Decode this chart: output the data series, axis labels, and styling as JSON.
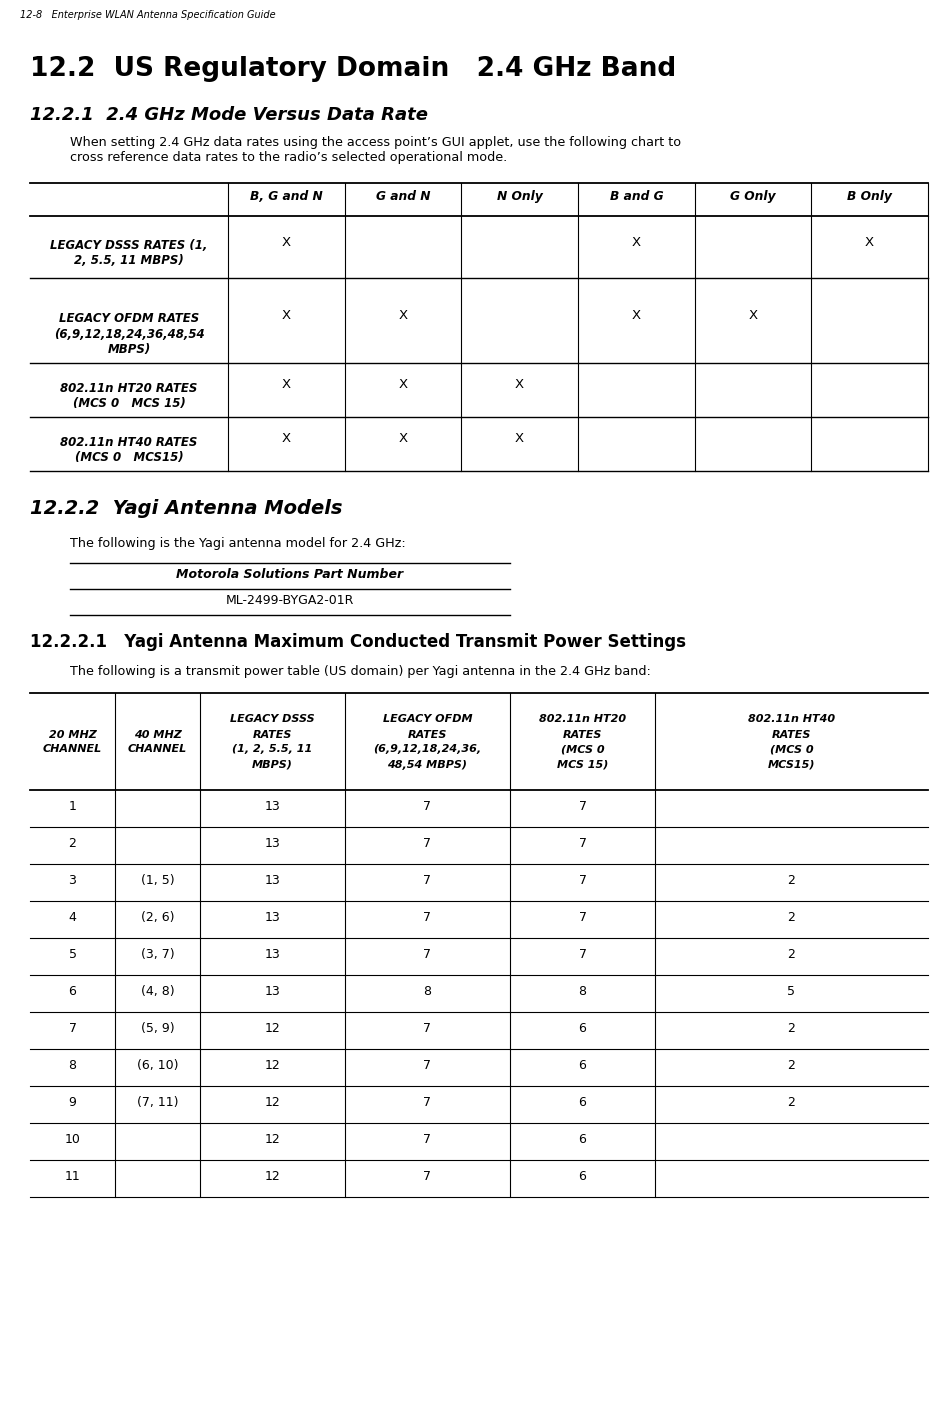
{
  "page_header": "12-8   Enterprise WLAN Antenna Specification Guide",
  "section_title": "12.2  US Regulatory Domain   2.4 GHz Band",
  "subsection_221": "12.2.1  2.4 GHz Mode Versus Data Rate",
  "para_221": "When setting 2.4 GHz data rates using the access point’s GUI applet, use the following chart to\ncross reference data rates to the radio’s selected operational mode.",
  "table1_col_headers": [
    "B, G and N",
    "G and N",
    "N Only",
    "B and G",
    "G Only",
    "B Only"
  ],
  "table1_row_headers": [
    "LEGACY DSSS RATES (1,\n2, 5.5, 11 MBPS)",
    "LEGACY OFDM RATES\n(6,9,12,18,24,36,48,54\nMBPS)",
    "802.11n HT20 RATES\n(MCS 0   MCS 15)",
    "802.11n HT40 RATES\n(MCS 0   MCS15)"
  ],
  "table1_data": [
    [
      "X",
      "",
      "",
      "X",
      "",
      "X"
    ],
    [
      "X",
      "X",
      "",
      "X",
      "X",
      ""
    ],
    [
      "X",
      "X",
      "X",
      "",
      "",
      ""
    ],
    [
      "X",
      "X",
      "X",
      "",
      "",
      ""
    ]
  ],
  "subsection_222": "12.2.2  Yagi Antenna Models",
  "para_222": "The following is the Yagi antenna model for 2.4 GHz:",
  "yagi_table_header": "Motorola Solutions Part Number",
  "yagi_table_value": "ML-2499-BYGA2-01R",
  "subsection_2221": "12.2.2.1   Yagi Antenna Maximum Conducted Transmit Power Settings",
  "para_2221": "The following is a transmit power table (US domain) per Yagi antenna in the 2.4 GHz band:",
  "table2_col_headers": [
    "20 MHZ\nCHANNEL",
    "40 MHZ\nCHANNEL",
    "LEGACY DSSS\nRATES\n(1, 2, 5.5, 11\nMBPS)",
    "LEGACY OFDM\nRATES\n(6,9,12,18,24,36,\n48,54 MBPS)",
    "802.11n HT20\nRATES\n(MCS 0\nMCS 15)",
    "802.11n HT40\nRATES\n(MCS 0\nMCS15)"
  ],
  "table2_rows": [
    [
      "1",
      "",
      "13",
      "7",
      "7",
      ""
    ],
    [
      "2",
      "",
      "13",
      "7",
      "7",
      ""
    ],
    [
      "3",
      "(1, 5)",
      "13",
      "7",
      "7",
      "2"
    ],
    [
      "4",
      "(2, 6)",
      "13",
      "7",
      "7",
      "2"
    ],
    [
      "5",
      "(3, 7)",
      "13",
      "7",
      "7",
      "2"
    ],
    [
      "6",
      "(4, 8)",
      "13",
      "8",
      "8",
      "5"
    ],
    [
      "7",
      "(5, 9)",
      "12",
      "7",
      "6",
      "2"
    ],
    [
      "8",
      "(6, 10)",
      "12",
      "7",
      "6",
      "2"
    ],
    [
      "9",
      "(7, 11)",
      "12",
      "7",
      "6",
      "2"
    ],
    [
      "10",
      "",
      "12",
      "7",
      "6",
      ""
    ],
    [
      "11",
      "",
      "12",
      "7",
      "6",
      ""
    ]
  ],
  "bg_color": "#ffffff",
  "text_color": "#000000",
  "line_color": "#000000"
}
